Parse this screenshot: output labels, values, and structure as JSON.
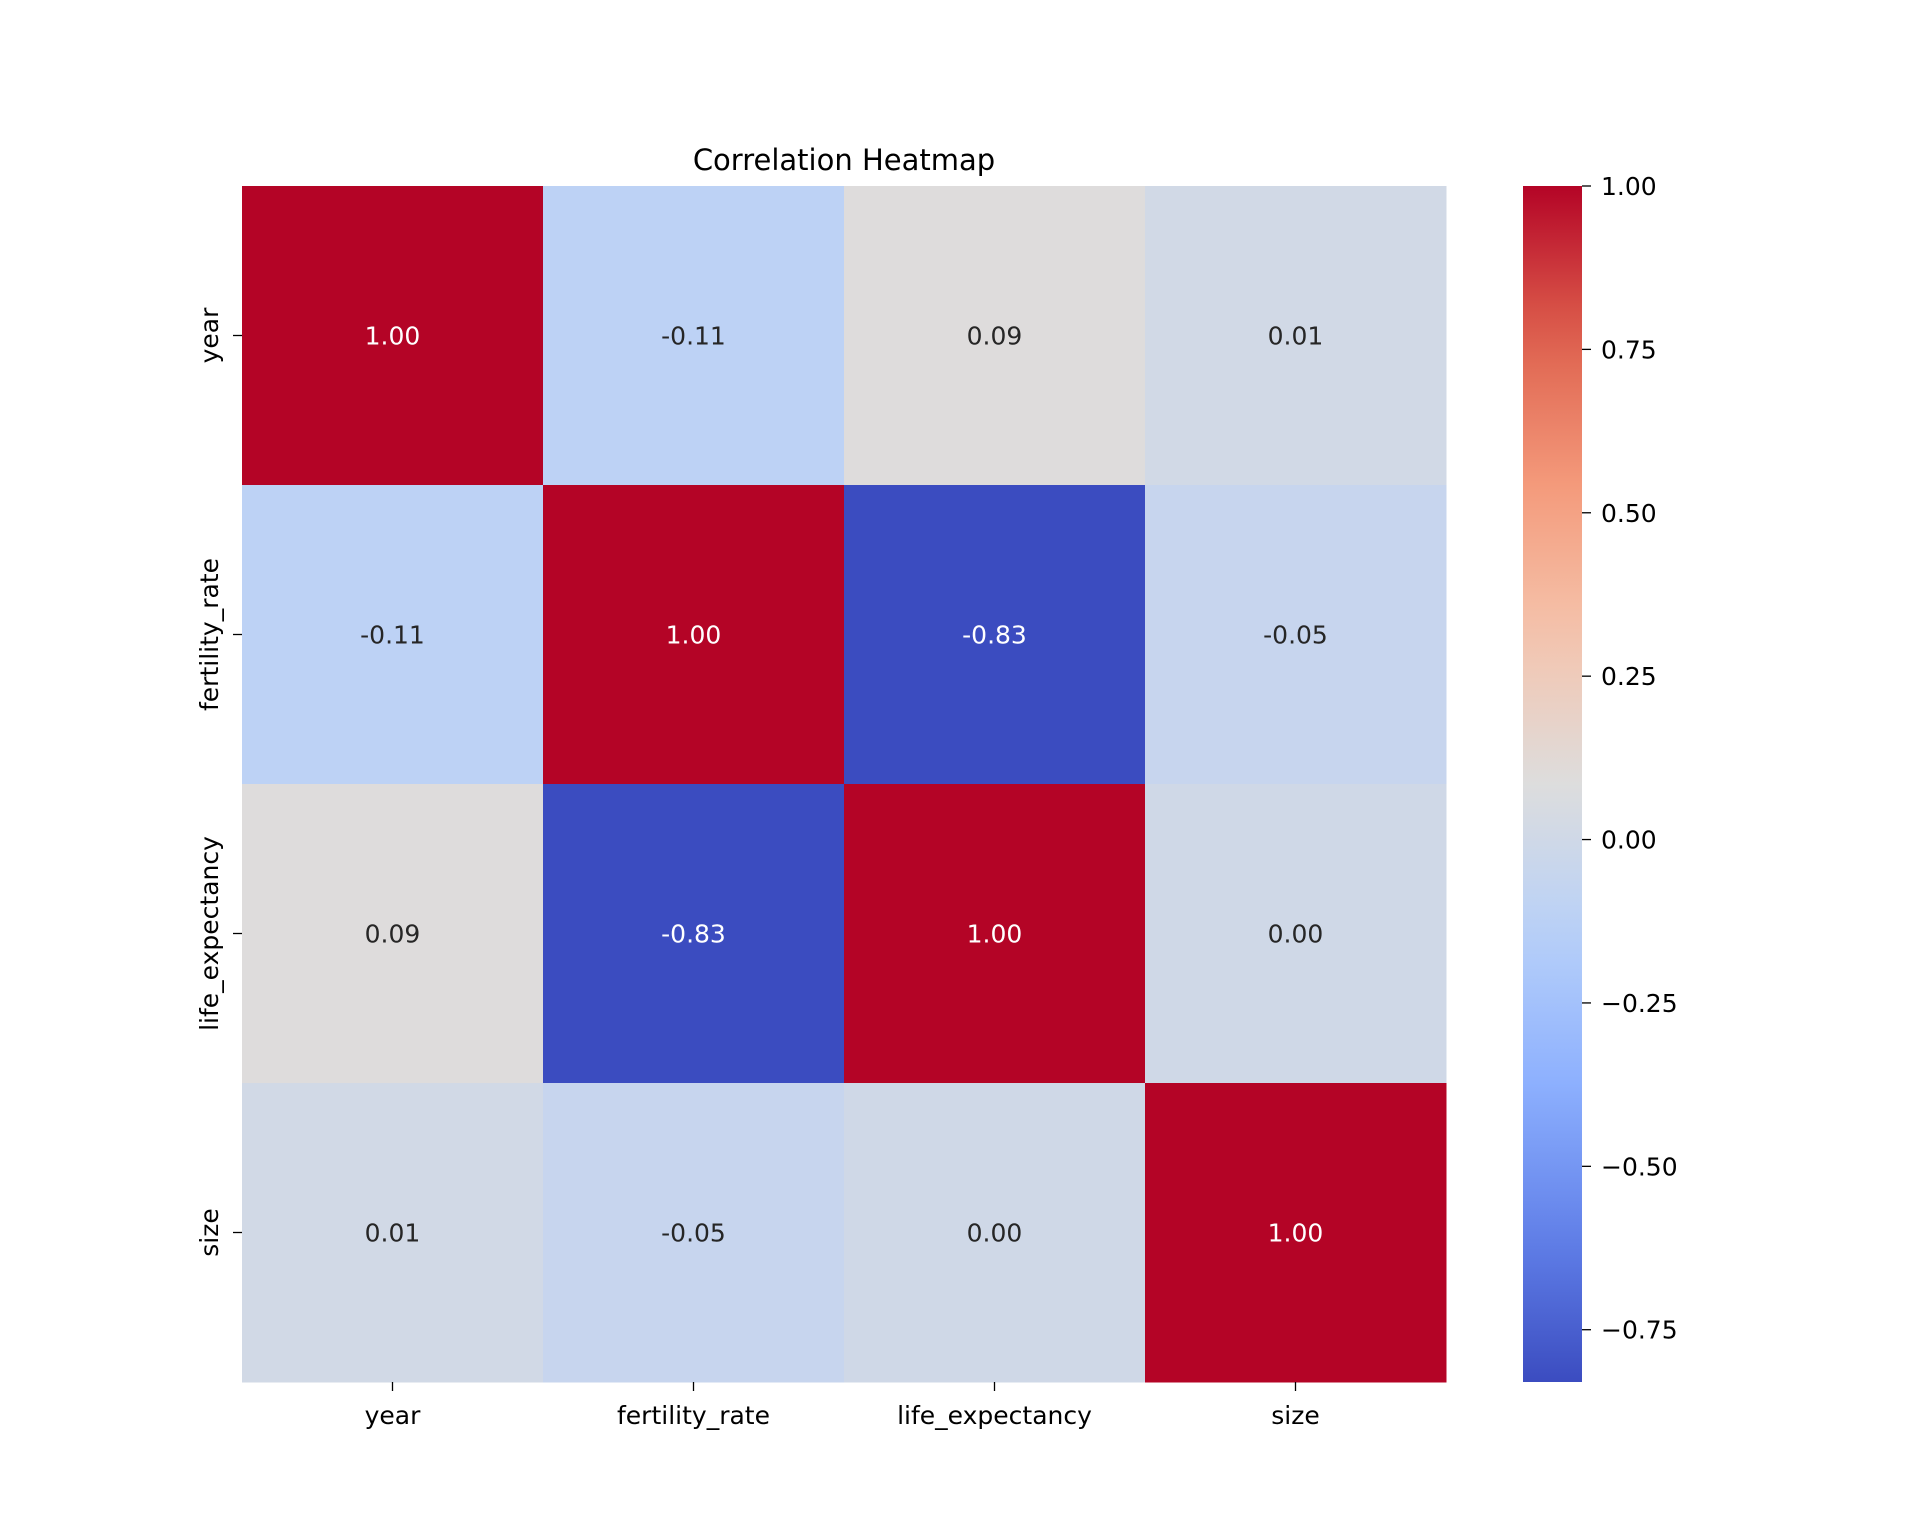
{
  "chart_data": {
    "type": "heatmap",
    "title": "Correlation Heatmap",
    "xlabel": "",
    "ylabel": "",
    "x_categories": [
      "year",
      "fertility_rate",
      "life_expectancy",
      "size"
    ],
    "y_categories": [
      "year",
      "fertility_rate",
      "life_expectancy",
      "size"
    ],
    "values": [
      [
        1.0,
        -0.11,
        0.09,
        0.01
      ],
      [
        -0.11,
        1.0,
        -0.83,
        -0.05
      ],
      [
        0.09,
        -0.83,
        1.0,
        0.0
      ],
      [
        0.01,
        -0.05,
        0.0,
        1.0
      ]
    ],
    "value_labels": [
      [
        "1.00",
        "-0.11",
        "0.09",
        "0.01"
      ],
      [
        "-0.11",
        "1.00",
        "-0.83",
        "-0.05"
      ],
      [
        "0.09",
        "-0.83",
        "1.00",
        "0.00"
      ],
      [
        "0.01",
        "-0.05",
        "0.00",
        "1.00"
      ]
    ],
    "colormap": "coolwarm",
    "colorbar": {
      "vmin": -0.83,
      "vmax": 1.0,
      "ticks": [
        1.0,
        0.75,
        0.5,
        0.25,
        0.0,
        -0.25,
        -0.5,
        -0.75
      ],
      "tick_labels": [
        "1.00",
        "0.75",
        "0.50",
        "0.25",
        "0.00",
        "−0.25",
        "−0.50",
        "−0.75"
      ],
      "placement": "right"
    },
    "grid": false
  }
}
